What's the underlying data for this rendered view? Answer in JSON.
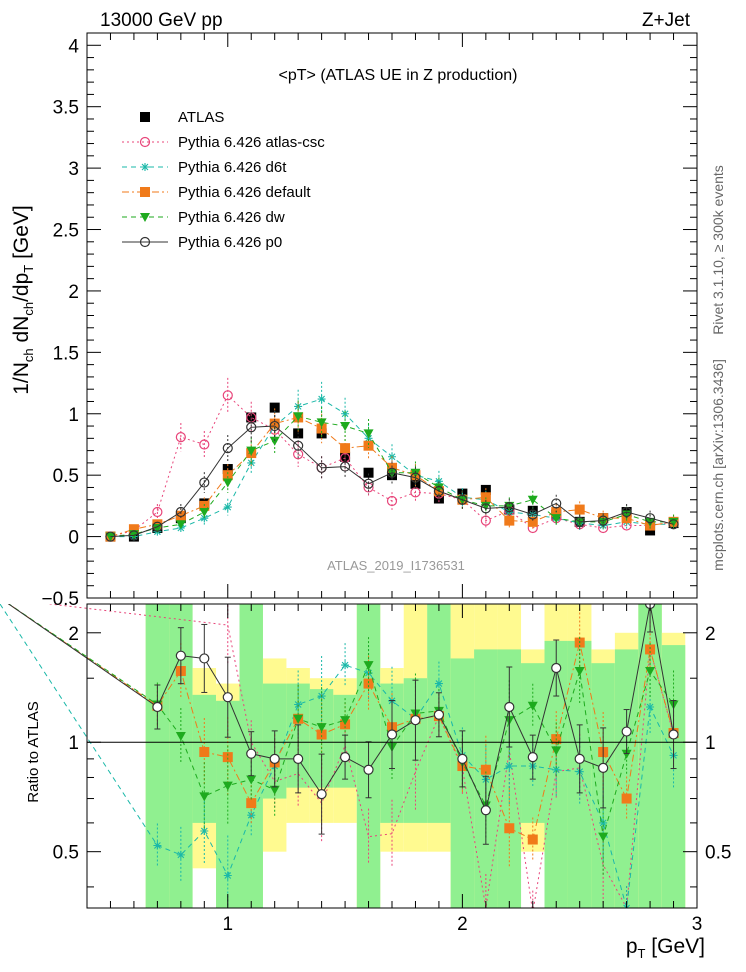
{
  "header": {
    "left": "13000 GeV pp",
    "right": "Z+Jet"
  },
  "side_labels": {
    "rivet": "Rivet 3.1.10, ≥ 300k events",
    "mcplots": "mcplots.cern.ch [arXiv:1306.3436]"
  },
  "analysis_id": "ATLAS_2019_I1736531",
  "chart_data": [
    {
      "type": "scatter",
      "panel": "main",
      "title": "<pT> (ATLAS UE in Z production)",
      "ylabel_parts": {
        "a": "1/N",
        "a_sub": "ch",
        "b": " dN",
        "b_sub": "ch",
        "c": "/dp",
        "c_sub": "T",
        "d": " [GeV]"
      },
      "xlim": [
        0.4,
        3.0
      ],
      "ylim": [
        -0.5,
        4.1
      ],
      "yticks": [
        -0.5,
        0,
        0.5,
        1,
        1.5,
        2,
        2.5,
        3,
        3.5,
        4
      ],
      "ytick_labels": [
        "−0.5",
        "0",
        "0.5",
        "1",
        "1.5",
        "2",
        "2.5",
        "3",
        "3.5",
        "4"
      ],
      "grid": false,
      "legend_position": "top-left",
      "series": [
        {
          "name": "ATLAS",
          "color": "#000000",
          "marker": "square",
          "line": "none",
          "x": [
            0.5,
            0.6,
            0.7,
            0.8,
            0.9,
            1.0,
            1.1,
            1.2,
            1.3,
            1.4,
            1.5,
            1.6,
            1.7,
            1.8,
            1.9,
            2.0,
            2.1,
            2.2,
            2.3,
            2.4,
            2.5,
            2.6,
            2.7,
            2.8,
            2.9
          ],
          "y": [
            0.0,
            0.0,
            0.07,
            0.15,
            0.27,
            0.55,
            0.97,
            1.05,
            0.84,
            0.84,
            0.65,
            0.52,
            0.5,
            0.43,
            0.31,
            0.35,
            0.38,
            0.22,
            0.21,
            0.18,
            0.12,
            0.15,
            0.2,
            0.05,
            0.11
          ]
        },
        {
          "name": "Pythia 6.426 atlas-csc",
          "color": "#e8457a",
          "marker": "open-circle",
          "line": "dotted",
          "x": [
            0.5,
            0.6,
            0.7,
            0.8,
            0.9,
            1.0,
            1.1,
            1.2,
            1.3,
            1.4,
            1.5,
            1.6,
            1.7,
            1.8,
            1.9,
            2.0,
            2.1,
            2.2,
            2.3,
            2.4,
            2.5,
            2.6,
            2.7,
            2.8,
            2.9
          ],
          "y": [
            0.0,
            0.05,
            0.2,
            0.81,
            0.75,
            1.15,
            0.97,
            0.87,
            0.67,
            0.56,
            0.64,
            0.4,
            0.29,
            0.36,
            0.35,
            0.3,
            0.13,
            0.21,
            0.07,
            0.15,
            0.1,
            0.07,
            0.09,
            0.09,
            0.12
          ]
        },
        {
          "name": "Pythia 6.426 d6t",
          "color": "#1ab8a8",
          "marker": "star",
          "line": "dashed",
          "x": [
            0.5,
            0.6,
            0.7,
            0.8,
            0.9,
            1.0,
            1.1,
            1.2,
            1.3,
            1.4,
            1.5,
            1.6,
            1.7,
            1.8,
            1.9,
            2.0,
            2.1,
            2.2,
            2.3,
            2.4,
            2.5,
            2.6,
            2.7,
            2.8,
            2.9
          ],
          "y": [
            0.0,
            0.0,
            0.04,
            0.07,
            0.15,
            0.24,
            0.6,
            0.9,
            1.06,
            1.12,
            1.0,
            0.8,
            0.65,
            0.5,
            0.45,
            0.32,
            0.3,
            0.2,
            0.18,
            0.15,
            0.11,
            0.09,
            0.12,
            0.1,
            0.1
          ]
        },
        {
          "name": "Pythia 6.426 default",
          "color": "#f07a1a",
          "marker": "square",
          "line": "dashdot",
          "x": [
            0.5,
            0.6,
            0.7,
            0.8,
            0.9,
            1.0,
            1.1,
            1.2,
            1.3,
            1.4,
            1.5,
            1.6,
            1.7,
            1.8,
            1.9,
            2.0,
            2.1,
            2.2,
            2.3,
            2.4,
            2.5,
            2.6,
            2.7,
            2.8,
            2.9
          ],
          "y": [
            0.0,
            0.06,
            0.1,
            0.17,
            0.25,
            0.5,
            0.68,
            0.92,
            0.97,
            0.88,
            0.72,
            0.74,
            0.56,
            0.5,
            0.37,
            0.3,
            0.32,
            0.13,
            0.12,
            0.2,
            0.22,
            0.15,
            0.15,
            0.09,
            0.12
          ]
        },
        {
          "name": "Pythia 6.426 dw",
          "color": "#1eaa1e",
          "marker": "triangle-down",
          "line": "dashed",
          "x": [
            0.5,
            0.6,
            0.7,
            0.8,
            0.9,
            1.0,
            1.1,
            1.2,
            1.3,
            1.4,
            1.5,
            1.6,
            1.7,
            1.8,
            1.9,
            2.0,
            2.1,
            2.2,
            2.3,
            2.4,
            2.5,
            2.6,
            2.7,
            2.8,
            2.9
          ],
          "y": [
            0.0,
            0.02,
            0.07,
            0.1,
            0.2,
            0.44,
            0.7,
            0.78,
            0.98,
            0.93,
            0.9,
            0.84,
            0.52,
            0.52,
            0.4,
            0.3,
            0.25,
            0.25,
            0.3,
            0.15,
            0.12,
            0.12,
            0.18,
            0.12,
            0.12
          ]
        },
        {
          "name": "Pythia 6.426 p0",
          "color": "#333333",
          "marker": "open-circle",
          "line": "solid",
          "x": [
            0.5,
            0.6,
            0.7,
            0.8,
            0.9,
            1.0,
            1.1,
            1.2,
            1.3,
            1.4,
            1.5,
            1.6,
            1.7,
            1.8,
            1.9,
            2.0,
            2.1,
            2.2,
            2.3,
            2.4,
            2.5,
            2.6,
            2.7,
            2.8,
            2.9
          ],
          "y": [
            0.0,
            0.01,
            0.08,
            0.2,
            0.44,
            0.72,
            0.89,
            0.9,
            0.74,
            0.56,
            0.57,
            0.43,
            0.52,
            0.48,
            0.37,
            0.3,
            0.23,
            0.24,
            0.18,
            0.27,
            0.12,
            0.13,
            0.2,
            0.15,
            0.1
          ]
        }
      ]
    },
    {
      "type": "line",
      "panel": "ratio",
      "xlabel_parts": {
        "a": "p",
        "a_sub": "T",
        "b": " [GeV]"
      },
      "ylabel": "Ratio to ATLAS",
      "xlim": [
        0.4,
        3.0
      ],
      "ylim": [
        0.35,
        2.4
      ],
      "log_y": true,
      "xticks": [
        1,
        2,
        3
      ],
      "xtick_labels": [
        "1",
        "2",
        "3"
      ],
      "yticks": [
        0.5,
        1,
        2
      ],
      "ytick_labels": [
        "0.5",
        "1",
        "2"
      ],
      "reference_line": 1,
      "uncertainty_bands": {
        "x": [
          0.7,
          0.8,
          0.9,
          1.0,
          1.1,
          1.2,
          1.3,
          1.4,
          1.5,
          1.6,
          1.7,
          1.8,
          1.9,
          2.0,
          2.1,
          2.2,
          2.3,
          2.4,
          2.5,
          2.6,
          2.7,
          2.8,
          2.9
        ],
        "stat_color": "#90f090",
        "total_color": "#fffa90",
        "stat": [
          [
            0.35,
            2.4
          ],
          [
            0.35,
            2.4
          ],
          [
            0.6,
            1.35
          ],
          [
            0.35,
            1.3
          ],
          [
            0.35,
            2.4
          ],
          [
            0.7,
            1.45
          ],
          [
            0.75,
            1.45
          ],
          [
            0.75,
            1.4
          ],
          [
            0.75,
            1.35
          ],
          [
            0.35,
            2.4
          ],
          [
            0.6,
            1.45
          ],
          [
            0.6,
            1.5
          ],
          [
            0.6,
            2.4
          ],
          [
            0.35,
            1.7
          ],
          [
            0.35,
            1.8
          ],
          [
            0.35,
            1.8
          ],
          [
            0.6,
            1.65
          ],
          [
            0.35,
            1.9
          ],
          [
            0.35,
            1.9
          ],
          [
            0.35,
            1.65
          ],
          [
            0.35,
            1.8
          ],
          [
            0.35,
            2.4
          ],
          [
            0.35,
            1.85
          ]
        ],
        "total": [
          [
            0.35,
            2.4
          ],
          [
            0.35,
            2.4
          ],
          [
            0.45,
            1.6
          ],
          [
            0.35,
            1.45
          ],
          [
            0.35,
            2.4
          ],
          [
            0.5,
            1.7
          ],
          [
            0.6,
            1.6
          ],
          [
            0.6,
            1.5
          ],
          [
            0.6,
            1.5
          ],
          [
            0.35,
            2.4
          ],
          [
            0.5,
            1.6
          ],
          [
            0.5,
            2.4
          ],
          [
            0.5,
            2.4
          ],
          [
            0.35,
            2.4
          ],
          [
            0.35,
            2.4
          ],
          [
            0.35,
            2.4
          ],
          [
            0.5,
            1.8
          ],
          [
            0.35,
            2.4
          ],
          [
            0.35,
            2.4
          ],
          [
            0.35,
            1.8
          ],
          [
            0.35,
            2.0
          ],
          [
            0.35,
            2.4
          ],
          [
            0.35,
            2.0
          ]
        ]
      },
      "series": [
        {
          "name": "Pythia 6.426 atlas-csc",
          "color": "#e8457a",
          "line": "dotted",
          "x": [
            0.7,
            0.8,
            0.9,
            1.0,
            1.1,
            1.2,
            1.3,
            1.4,
            1.5,
            1.6,
            1.7,
            1.8,
            1.9,
            2.0,
            2.1,
            2.2,
            2.3,
            2.4,
            2.5,
            2.6,
            2.7,
            2.8,
            2.9
          ],
          "y": [
            null,
            null,
            null,
            2.1,
            1.0,
            0.78,
            0.82,
            0.68,
            0.98,
            0.55,
            0.56,
            0.83,
            1.18,
            0.85,
            0.35,
            0.95,
            0.34,
            0.83,
            0.85,
            0.46,
            0.35,
            1.8,
            1.05
          ]
        },
        {
          "name": "Pythia 6.426 d6t",
          "color": "#1ab8a8",
          "line": "dashed",
          "x": [
            0.7,
            0.8,
            0.9,
            1.0,
            1.1,
            1.2,
            1.3,
            1.4,
            1.5,
            1.6,
            1.7,
            1.8,
            1.9,
            2.0,
            2.1,
            2.2,
            2.3,
            2.4,
            2.5,
            2.6,
            2.7,
            2.8,
            2.9
          ],
          "y": [
            0.52,
            0.49,
            0.57,
            0.43,
            0.63,
            0.86,
            1.27,
            1.34,
            1.63,
            1.55,
            1.3,
            1.16,
            1.45,
            0.92,
            0.79,
            0.86,
            0.86,
            0.84,
            0.83,
            0.6,
            0.35,
            1.25,
            0.92
          ]
        },
        {
          "name": "Pythia 6.426 default",
          "color": "#f07a1a",
          "line": "dashdot",
          "x": [
            0.7,
            0.8,
            0.9,
            1.0,
            1.1,
            1.2,
            1.3,
            1.4,
            1.5,
            1.6,
            1.7,
            1.8,
            1.9,
            2.0,
            2.1,
            2.2,
            2.3,
            2.4,
            2.5,
            2.6,
            2.7,
            2.8,
            2.9
          ],
          "y": [
            1.26,
            1.57,
            0.94,
            0.91,
            0.68,
            0.88,
            1.16,
            1.05,
            1.12,
            1.45,
            1.1,
            1.16,
            1.18,
            0.86,
            0.84,
            0.58,
            0.54,
            1.02,
            1.88,
            0.94,
            0.7,
            1.8,
            1.06
          ]
        },
        {
          "name": "Pythia 6.426 dw",
          "color": "#1eaa1e",
          "line": "dashed",
          "x": [
            0.7,
            0.8,
            0.9,
            1.0,
            1.1,
            1.2,
            1.3,
            1.4,
            1.5,
            1.6,
            1.7,
            1.8,
            1.9,
            2.0,
            2.1,
            2.2,
            2.3,
            2.4,
            2.5,
            2.6,
            2.7,
            2.8,
            2.9
          ],
          "y": [
            1.27,
            1.04,
            0.71,
            0.76,
            0.79,
            0.74,
            1.16,
            1.1,
            1.15,
            1.63,
            0.97,
            1.2,
            1.22,
            0.88,
            0.67,
            1.15,
            1.26,
            0.95,
            1.57,
            0.55,
            0.93,
            1.57,
            1.27
          ]
        },
        {
          "name": "Pythia 6.426 p0",
          "color": "#333333",
          "line": "solid",
          "x": [
            0.7,
            0.8,
            0.9,
            1.0,
            1.1,
            1.2,
            1.3,
            1.4,
            1.5,
            1.6,
            1.7,
            1.8,
            1.9,
            2.0,
            2.1,
            2.2,
            2.3,
            2.4,
            2.5,
            2.6,
            2.7,
            2.8,
            2.9
          ],
          "y": [
            1.25,
            1.73,
            1.7,
            1.33,
            0.93,
            0.9,
            0.9,
            0.72,
            0.91,
            0.84,
            1.05,
            1.15,
            1.19,
            0.9,
            0.65,
            1.25,
            0.91,
            1.6,
            0.9,
            0.85,
            1.07,
            2.4,
            1.05
          ]
        }
      ]
    }
  ]
}
